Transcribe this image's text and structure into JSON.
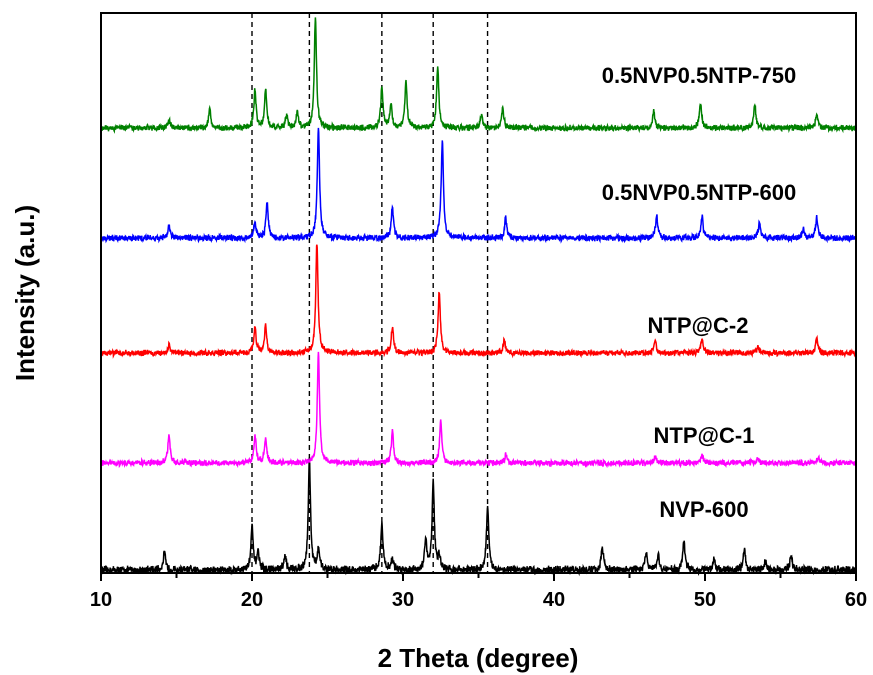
{
  "chart_data": {
    "type": "line",
    "xlabel": "2 Theta (degree)",
    "ylabel": "Intensity (a.u.)",
    "xlim": [
      10,
      60
    ],
    "x_ticks": [
      "10",
      "20",
      "30",
      "40",
      "50",
      "60"
    ],
    "y_ticks_labeled": false,
    "reference_lines": [
      20.0,
      23.8,
      28.6,
      32.0,
      35.6
    ],
    "grid": false,
    "legend": "labels placed above each curve",
    "series": [
      {
        "name": "NVP-600",
        "color": "#000000",
        "offset": 0,
        "peak_height": 78,
        "peaks": [
          [
            14.2,
            12
          ],
          [
            20.0,
            30
          ],
          [
            20.4,
            12
          ],
          [
            22.2,
            10
          ],
          [
            23.8,
            78
          ],
          [
            24.4,
            14
          ],
          [
            28.6,
            33
          ],
          [
            29.3,
            8
          ],
          [
            31.5,
            20
          ],
          [
            32.0,
            62
          ],
          [
            32.4,
            10
          ],
          [
            35.6,
            45
          ],
          [
            43.2,
            16
          ],
          [
            46.1,
            12
          ],
          [
            46.9,
            10
          ],
          [
            48.6,
            21
          ],
          [
            50.6,
            8
          ],
          [
            52.6,
            14
          ],
          [
            54.0,
            6
          ],
          [
            55.7,
            10
          ]
        ]
      },
      {
        "name": "NTP@C-1",
        "color": "#ff00ff",
        "offset": 1,
        "peak_height": 108,
        "peaks": [
          [
            14.5,
            27
          ],
          [
            20.2,
            27
          ],
          [
            20.9,
            25
          ],
          [
            24.4,
            108
          ],
          [
            29.3,
            32
          ],
          [
            32.5,
            40
          ],
          [
            36.8,
            8
          ],
          [
            46.7,
            6
          ],
          [
            49.8,
            8
          ],
          [
            53.5,
            5
          ],
          [
            57.5,
            6
          ]
        ]
      },
      {
        "name": "NTP@C-2",
        "color": "#ff0000",
        "offset": 2,
        "peak_height": 108,
        "peaks": [
          [
            14.5,
            8
          ],
          [
            20.2,
            25
          ],
          [
            20.9,
            27
          ],
          [
            24.3,
            108
          ],
          [
            29.3,
            26
          ],
          [
            32.4,
            60
          ],
          [
            36.7,
            12
          ],
          [
            46.7,
            12
          ],
          [
            49.8,
            14
          ],
          [
            53.5,
            6
          ],
          [
            57.4,
            15
          ]
        ]
      },
      {
        "name": "0.5NVP0.5NTP-600",
        "color": "#0000ff",
        "offset": 3,
        "peak_height": 100,
        "peaks": [
          [
            14.5,
            10
          ],
          [
            20.2,
            15
          ],
          [
            21.0,
            32
          ],
          [
            24.4,
            100
          ],
          [
            29.3,
            28
          ],
          [
            32.6,
            88
          ],
          [
            36.8,
            18
          ],
          [
            46.8,
            20
          ],
          [
            49.8,
            20
          ],
          [
            53.6,
            14
          ],
          [
            56.5,
            8
          ],
          [
            57.4,
            18
          ]
        ]
      },
      {
        "name": "0.5NVP0.5NTP-750",
        "color": "#008000",
        "offset": 4,
        "peak_height": 104,
        "peaks": [
          [
            14.5,
            8
          ],
          [
            17.2,
            18
          ],
          [
            20.2,
            36
          ],
          [
            20.9,
            35
          ],
          [
            22.3,
            12
          ],
          [
            23.0,
            15
          ],
          [
            24.2,
            104
          ],
          [
            28.6,
            38
          ],
          [
            29.2,
            22
          ],
          [
            30.2,
            44
          ],
          [
            32.3,
            58
          ],
          [
            35.2,
            12
          ],
          [
            36.6,
            18
          ],
          [
            46.6,
            16
          ],
          [
            49.7,
            24
          ],
          [
            53.3,
            22
          ],
          [
            57.4,
            12
          ]
        ]
      }
    ]
  }
}
